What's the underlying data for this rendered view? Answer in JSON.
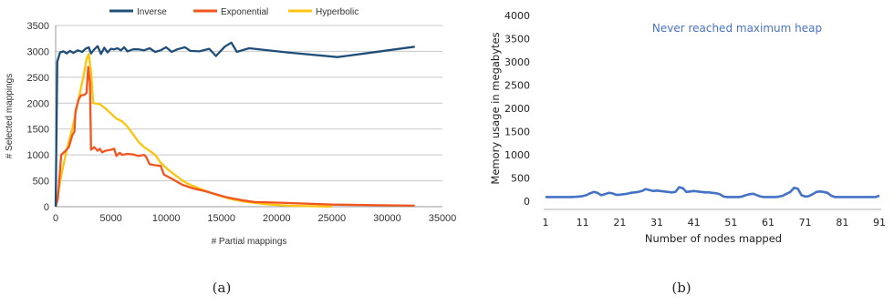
{
  "captions": {
    "a": "(a)",
    "b": "(b)"
  },
  "chart_data": [
    {
      "type": "line",
      "xlabel": "# Partial mappings",
      "ylabel": "# Selected mappings",
      "xlim": [
        0,
        35000
      ],
      "ylim": [
        0,
        3500
      ],
      "xticks": [
        0,
        5000,
        10000,
        15000,
        20000,
        25000,
        30000,
        35000
      ],
      "yticks": [
        0,
        500,
        1000,
        1500,
        2000,
        2500,
        3000,
        3500
      ],
      "grid": "horizontal",
      "legend": "top",
      "series": [
        {
          "name": "Inverse",
          "color": "#1f4e79",
          "points": [
            [
              0,
              0
            ],
            [
              150,
              2800
            ],
            [
              400,
              2980
            ],
            [
              700,
              3000
            ],
            [
              1000,
              2960
            ],
            [
              1300,
              3010
            ],
            [
              1600,
              2970
            ],
            [
              2000,
              3020
            ],
            [
              2400,
              2990
            ],
            [
              2700,
              3050
            ],
            [
              3000,
              3080
            ],
            [
              3200,
              2960
            ],
            [
              3500,
              3040
            ],
            [
              3800,
              3100
            ],
            [
              4100,
              2950
            ],
            [
              4400,
              3070
            ],
            [
              4700,
              2980
            ],
            [
              5000,
              3050
            ],
            [
              5300,
              3040
            ],
            [
              5600,
              3060
            ],
            [
              5900,
              3020
            ],
            [
              6200,
              3080
            ],
            [
              6500,
              3000
            ],
            [
              7000,
              3040
            ],
            [
              7500,
              3040
            ],
            [
              8000,
              3020
            ],
            [
              8500,
              3060
            ],
            [
              9000,
              2990
            ],
            [
              9500,
              3020
            ],
            [
              10000,
              3080
            ],
            [
              10500,
              2990
            ],
            [
              11000,
              3040
            ],
            [
              11700,
              3080
            ],
            [
              12200,
              3010
            ],
            [
              13000,
              3000
            ],
            [
              13900,
              3050
            ],
            [
              14500,
              2910
            ],
            [
              15300,
              3090
            ],
            [
              15900,
              3170
            ],
            [
              16400,
              2990
            ],
            [
              17500,
              3060
            ],
            [
              21000,
              2980
            ],
            [
              25500,
              2890
            ],
            [
              28000,
              2960
            ],
            [
              32500,
              3090
            ]
          ]
        },
        {
          "name": "Exponential",
          "color": "#f0561d",
          "points": [
            [
              0,
              0
            ],
            [
              200,
              150
            ],
            [
              500,
              1000
            ],
            [
              900,
              1080
            ],
            [
              1200,
              1150
            ],
            [
              1500,
              1380
            ],
            [
              1700,
              1450
            ],
            [
              1800,
              1850
            ],
            [
              2100,
              2080
            ],
            [
              2300,
              2150
            ],
            [
              2600,
              2160
            ],
            [
              2800,
              2200
            ],
            [
              2950,
              2700
            ],
            [
              3100,
              2400
            ],
            [
              3200,
              1100
            ],
            [
              3500,
              1150
            ],
            [
              3800,
              1080
            ],
            [
              4000,
              1120
            ],
            [
              4200,
              1050
            ],
            [
              4500,
              1080
            ],
            [
              5000,
              1100
            ],
            [
              5300,
              1120
            ],
            [
              5500,
              980
            ],
            [
              5800,
              1040
            ],
            [
              6000,
              1000
            ],
            [
              6500,
              1020
            ],
            [
              7000,
              1010
            ],
            [
              7500,
              980
            ],
            [
              8000,
              1000
            ],
            [
              8200,
              960
            ],
            [
              8500,
              820
            ],
            [
              9000,
              800
            ],
            [
              9500,
              790
            ],
            [
              9800,
              620
            ],
            [
              10500,
              540
            ],
            [
              11000,
              480
            ],
            [
              11500,
              420
            ],
            [
              12500,
              350
            ],
            [
              13500,
              300
            ],
            [
              14500,
              240
            ],
            [
              15500,
              180
            ],
            [
              16500,
              140
            ],
            [
              17000,
              120
            ],
            [
              18000,
              90
            ],
            [
              20000,
              80
            ],
            [
              25000,
              40
            ],
            [
              32500,
              20
            ]
          ]
        },
        {
          "name": "Hyperbolic",
          "color": "#fcc40c",
          "points": [
            [
              0,
              0
            ],
            [
              500,
              600
            ],
            [
              1000,
              1100
            ],
            [
              1500,
              1500
            ],
            [
              2000,
              2000
            ],
            [
              2500,
              2500
            ],
            [
              2800,
              2850
            ],
            [
              3000,
              2950
            ],
            [
              3200,
              2600
            ],
            [
              3400,
              2000
            ],
            [
              4000,
              1980
            ],
            [
              4500,
              1900
            ],
            [
              5000,
              1800
            ],
            [
              5500,
              1700
            ],
            [
              6000,
              1650
            ],
            [
              6500,
              1550
            ],
            [
              7000,
              1400
            ],
            [
              7500,
              1250
            ],
            [
              8000,
              1150
            ],
            [
              8500,
              1080
            ],
            [
              9000,
              1000
            ],
            [
              9500,
              850
            ],
            [
              10000,
              750
            ],
            [
              10500,
              660
            ],
            [
              11000,
              580
            ],
            [
              11500,
              500
            ],
            [
              12000,
              440
            ],
            [
              13000,
              350
            ],
            [
              14000,
              270
            ],
            [
              15000,
              200
            ],
            [
              16000,
              140
            ],
            [
              17000,
              100
            ],
            [
              19000,
              50
            ],
            [
              21000,
              20
            ],
            [
              25000,
              0
            ]
          ]
        }
      ]
    },
    {
      "type": "line",
      "xlabel": "Number of nodes mapped",
      "ylabel": "Memory usage in megabytes",
      "xlim": [
        1,
        91
      ],
      "ylim": [
        0,
        4000
      ],
      "xticks": [
        1,
        11,
        21,
        31,
        41,
        51,
        61,
        71,
        81,
        91
      ],
      "yticks": [
        0,
        500,
        1000,
        1500,
        2000,
        2500,
        3000,
        3500,
        4000
      ],
      "grid": "none",
      "annotation": "Never reached maximum heap",
      "series": [
        {
          "color": "#4472c4",
          "points": [
            [
              1,
              90
            ],
            [
              2,
              90
            ],
            [
              3,
              90
            ],
            [
              4,
              90
            ],
            [
              5,
              90
            ],
            [
              6,
              90
            ],
            [
              7,
              90
            ],
            [
              8,
              90
            ],
            [
              9,
              95
            ],
            [
              10,
              100
            ],
            [
              11,
              110
            ],
            [
              12,
              130
            ],
            [
              13,
              170
            ],
            [
              14,
              200
            ],
            [
              15,
              180
            ],
            [
              16,
              130
            ],
            [
              17,
              150
            ],
            [
              18,
              180
            ],
            [
              19,
              170
            ],
            [
              20,
              140
            ],
            [
              21,
              140
            ],
            [
              22,
              150
            ],
            [
              23,
              160
            ],
            [
              24,
              180
            ],
            [
              25,
              190
            ],
            [
              26,
              200
            ],
            [
              27,
              220
            ],
            [
              28,
              260
            ],
            [
              29,
              240
            ],
            [
              30,
              220
            ],
            [
              31,
              230
            ],
            [
              32,
              220
            ],
            [
              33,
              210
            ],
            [
              34,
              200
            ],
            [
              35,
              190
            ],
            [
              36,
              200
            ],
            [
              37,
              300
            ],
            [
              38,
              280
            ],
            [
              39,
              200
            ],
            [
              40,
              210
            ],
            [
              41,
              220
            ],
            [
              42,
              210
            ],
            [
              43,
              200
            ],
            [
              44,
              190
            ],
            [
              45,
              190
            ],
            [
              46,
              180
            ],
            [
              47,
              170
            ],
            [
              48,
              150
            ],
            [
              49,
              100
            ],
            [
              50,
              90
            ],
            [
              51,
              90
            ],
            [
              52,
              90
            ],
            [
              53,
              90
            ],
            [
              54,
              100
            ],
            [
              55,
              130
            ],
            [
              56,
              150
            ],
            [
              57,
              160
            ],
            [
              58,
              130
            ],
            [
              59,
              100
            ],
            [
              60,
              90
            ],
            [
              61,
              90
            ],
            [
              62,
              90
            ],
            [
              63,
              90
            ],
            [
              64,
              100
            ],
            [
              65,
              120
            ],
            [
              66,
              160
            ],
            [
              67,
              200
            ],
            [
              68,
              290
            ],
            [
              69,
              270
            ],
            [
              70,
              130
            ],
            [
              71,
              100
            ],
            [
              72,
              110
            ],
            [
              73,
              150
            ],
            [
              74,
              200
            ],
            [
              75,
              210
            ],
            [
              76,
              200
            ],
            [
              77,
              180
            ],
            [
              78,
              120
            ],
            [
              79,
              90
            ],
            [
              80,
              90
            ],
            [
              81,
              90
            ],
            [
              82,
              90
            ],
            [
              83,
              90
            ],
            [
              84,
              90
            ],
            [
              85,
              90
            ],
            [
              86,
              90
            ],
            [
              87,
              90
            ],
            [
              88,
              90
            ],
            [
              89,
              90
            ],
            [
              90,
              90
            ],
            [
              91,
              120
            ]
          ]
        }
      ]
    }
  ]
}
